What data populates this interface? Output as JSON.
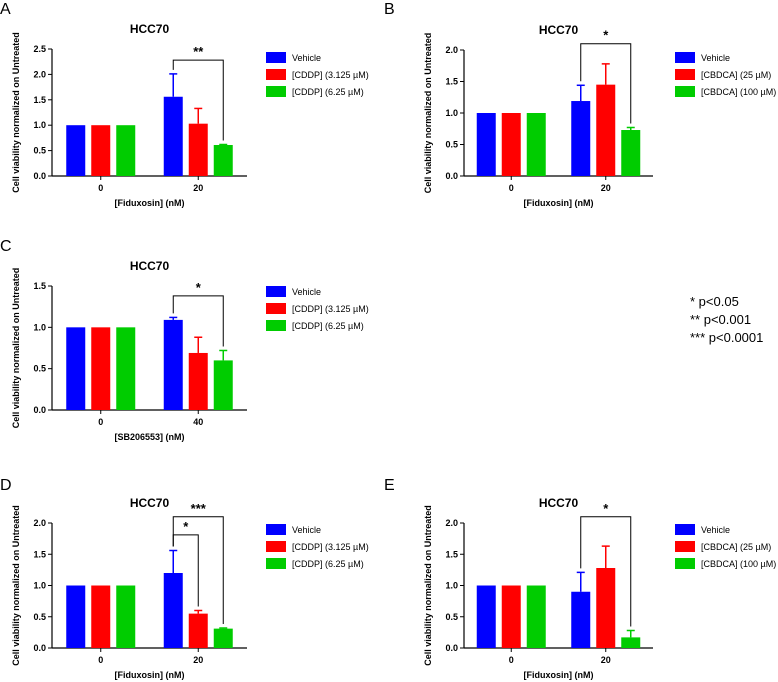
{
  "legend_notes": [
    "* p<0.05",
    "** p<0.001",
    "*** p<0.0001"
  ],
  "chart_data": [
    {
      "panel": "A",
      "type": "bar",
      "title": "HCC70",
      "xlabel": "[Fiduxosin] (nM)",
      "ylabel": "Cell viability normalized on Untreated",
      "categories": [
        "0",
        "20"
      ],
      "ylim": [
        0,
        2.5
      ],
      "yticks": [
        "0.0",
        "0.5",
        "1.0",
        "1.5",
        "2.0",
        "2.5"
      ],
      "legend_position": "right",
      "series": [
        {
          "name": "Vehicle",
          "color": "#0000ff",
          "values": [
            1.0,
            1.56
          ],
          "errors": [
            0,
            0.45
          ]
        },
        {
          "name": "[CDDP] (3.125 µM)",
          "color": "#ff0000",
          "values": [
            1.0,
            1.03
          ],
          "errors": [
            0,
            0.3
          ]
        },
        {
          "name": "[CDDP] (6.25 µM)",
          "color": "#00cc00",
          "values": [
            1.0,
            0.61
          ],
          "errors": [
            0,
            0.01
          ]
        }
      ],
      "significance": [
        {
          "from": [
            1,
            0
          ],
          "to": [
            1,
            2
          ],
          "label": "**",
          "y": 2.28
        }
      ]
    },
    {
      "panel": "B",
      "type": "bar",
      "title": "HCC70",
      "xlabel": "[Fiduxosin] (nM)",
      "ylabel": "Cell viability normalized on Untreated",
      "categories": [
        "0",
        "20"
      ],
      "ylim": [
        0,
        2.0
      ],
      "yticks": [
        "0.0",
        "0.5",
        "1.0",
        "1.5",
        "2.0"
      ],
      "legend_position": "right",
      "series": [
        {
          "name": "Vehicle",
          "color": "#0000ff",
          "values": [
            1.0,
            1.19
          ],
          "errors": [
            0,
            0.25
          ]
        },
        {
          "name": "[CBDCA] (25 µM)",
          "color": "#ff0000",
          "values": [
            1.0,
            1.45
          ],
          "errors": [
            0,
            0.33
          ]
        },
        {
          "name": "[CBDCA] (100 µM)",
          "color": "#00cc00",
          "values": [
            1.0,
            0.73
          ],
          "errors": [
            0,
            0.04
          ]
        }
      ],
      "significance": [
        {
          "from": [
            1,
            0
          ],
          "to": [
            1,
            2
          ],
          "label": "*",
          "y": 2.1
        }
      ]
    },
    {
      "panel": "C",
      "type": "bar",
      "title": "HCC70",
      "xlabel": "[SB206553] (nM)",
      "ylabel": "Cell viability normalized on Untreated",
      "categories": [
        "0",
        "40"
      ],
      "ylim": [
        0,
        1.5
      ],
      "yticks": [
        "0.0",
        "0.5",
        "1.0",
        "1.5"
      ],
      "legend_position": "right",
      "series": [
        {
          "name": "Vehicle",
          "color": "#0000ff",
          "values": [
            1.0,
            1.09
          ],
          "errors": [
            0,
            0.03
          ]
        },
        {
          "name": "[CDDP] (3.125 µM)",
          "color": "#ff0000",
          "values": [
            1.0,
            0.69
          ],
          "errors": [
            0,
            0.19
          ]
        },
        {
          "name": "[CDDP] (6.25 µM)",
          "color": "#00cc00",
          "values": [
            1.0,
            0.6
          ],
          "errors": [
            0,
            0.12
          ]
        }
      ],
      "significance": [
        {
          "from": [
            1,
            0
          ],
          "to": [
            1,
            2
          ],
          "label": "*",
          "y": 1.38
        }
      ]
    },
    {
      "panel": "D",
      "type": "bar",
      "title": "HCC70",
      "xlabel": "[Fiduxosin] (nM)",
      "ylabel": "Cell viability normalized on Untreated",
      "categories": [
        "0",
        "20"
      ],
      "ylim": [
        0,
        2.0
      ],
      "yticks": [
        "0.0",
        "0.5",
        "1.0",
        "1.5",
        "2.0"
      ],
      "legend_position": "right",
      "series": [
        {
          "name": "Vehicle",
          "color": "#0000ff",
          "values": [
            1.0,
            1.2
          ],
          "errors": [
            0,
            0.36
          ]
        },
        {
          "name": "[CDDP] (3.125 µM)",
          "color": "#ff0000",
          "values": [
            1.0,
            0.55
          ],
          "errors": [
            0,
            0.05
          ]
        },
        {
          "name": "[CDDP] (6.25 µM)",
          "color": "#00cc00",
          "values": [
            1.0,
            0.31
          ],
          "errors": [
            0,
            0.01
          ]
        }
      ],
      "significance": [
        {
          "from": [
            1,
            0
          ],
          "to": [
            1,
            1
          ],
          "label": "*",
          "y": 1.81
        },
        {
          "from": [
            1,
            0
          ],
          "to": [
            1,
            2
          ],
          "label": "***",
          "y": 2.1
        }
      ]
    },
    {
      "panel": "E",
      "type": "bar",
      "title": "HCC70",
      "xlabel": "[Fiduxosin] (nM)",
      "ylabel": "Cell viability normalized on Untreated",
      "categories": [
        "0",
        "20"
      ],
      "ylim": [
        0,
        2.0
      ],
      "yticks": [
        "0.0",
        "0.5",
        "1.0",
        "1.5",
        "2.0"
      ],
      "legend_position": "right",
      "series": [
        {
          "name": "Vehicle",
          "color": "#0000ff",
          "values": [
            1.0,
            0.9
          ],
          "errors": [
            0,
            0.31
          ]
        },
        {
          "name": "[CBDCA] (25 µM)",
          "color": "#ff0000",
          "values": [
            1.0,
            1.28
          ],
          "errors": [
            0,
            0.35
          ]
        },
        {
          "name": "[CBDCA] (100 µM)",
          "color": "#00cc00",
          "values": [
            1.0,
            0.17
          ],
          "errors": [
            0,
            0.11
          ]
        }
      ],
      "significance": [
        {
          "from": [
            1,
            0
          ],
          "to": [
            1,
            2
          ],
          "label": "*",
          "y": 2.1
        }
      ]
    }
  ]
}
